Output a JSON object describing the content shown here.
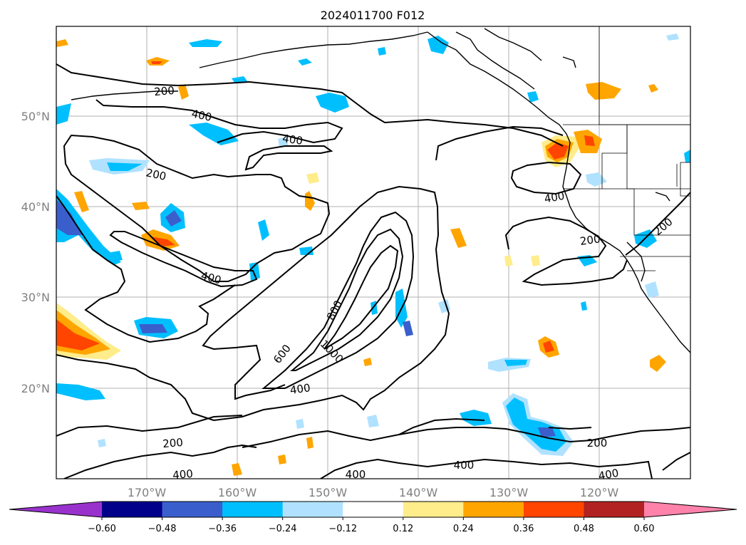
{
  "title": "2024011700 F012",
  "axes": {
    "lon_labels": [
      "170°W",
      "160°W",
      "150°W",
      "140°W",
      "130°W",
      "120°W"
    ],
    "lat_labels": [
      "50°N",
      "40°N",
      "30°N",
      "20°N"
    ]
  },
  "colorbar": {
    "colors": [
      "#9932cc",
      "#00008b",
      "#3a5fcd",
      "#00bfff",
      "#b0e2ff",
      "#ffffff",
      "#ffec8b",
      "#ffa500",
      "#ff4500",
      "#b22222",
      "#ff82ab"
    ],
    "tick_labels": [
      "−0.60",
      "−0.48",
      "−0.36",
      "−0.24",
      "−0.12",
      "0.12",
      "0.24",
      "0.36",
      "0.48",
      "0.60"
    ]
  },
  "contour_labels": [
    "200",
    "400",
    "200",
    "400",
    "400",
    "800",
    "600",
    "1000",
    "400",
    "400",
    "200",
    "200",
    "200",
    "400",
    "400",
    "400",
    "400",
    "200"
  ]
}
